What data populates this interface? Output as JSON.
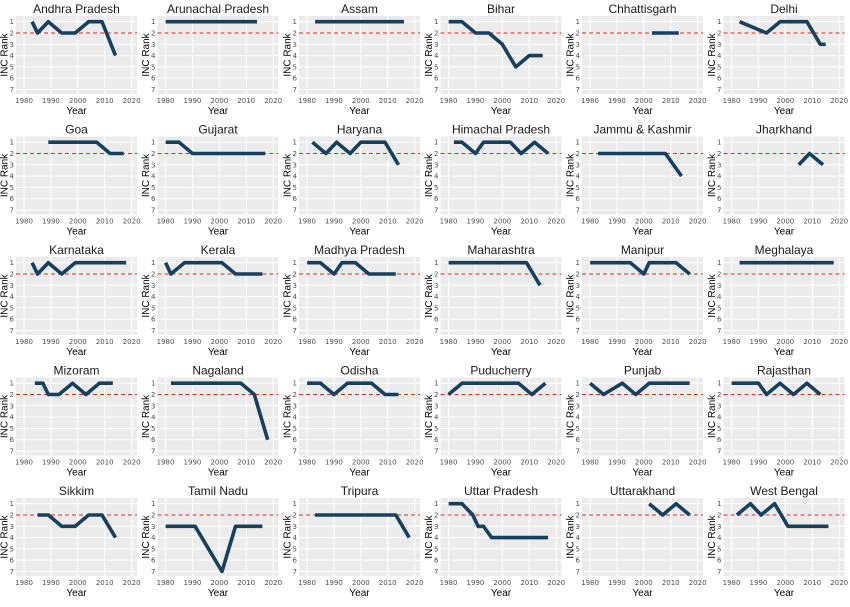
{
  "chart_data": {
    "type": "line",
    "xlabel": "Year",
    "ylabel": "INC Rank",
    "xlim": [
      1977,
      2022
    ],
    "ylim": [
      0.5,
      7.4
    ],
    "x_ticks": [
      1980,
      1990,
      2000,
      2010,
      2020
    ],
    "y_ticks": [
      1,
      2,
      3,
      4,
      5,
      6,
      7
    ],
    "reference_line": 2,
    "grid": true,
    "colors": {
      "series": "#17405f",
      "reference": "#e4281e",
      "panel": "#ebebeb",
      "grid": "#ffffff"
    },
    "panels": [
      {
        "title": "Andhra Pradesh",
        "x": [
          1983,
          1985,
          1989,
          1994,
          1999,
          2004,
          2009,
          2014
        ],
        "y": [
          1,
          2,
          1,
          2,
          2,
          1,
          1,
          4
        ]
      },
      {
        "title": "Arunachal Pradesh",
        "x": [
          1980,
          1984,
          1990,
          1995,
          1999,
          2004,
          2009,
          2014
        ],
        "y": [
          1,
          1,
          1,
          1,
          1,
          1,
          1,
          1
        ]
      },
      {
        "title": "Assam",
        "x": [
          1983,
          1985,
          1991,
          1996,
          2001,
          2006,
          2011,
          2016
        ],
        "y": [
          1,
          1,
          1,
          1,
          1,
          1,
          1,
          1
        ]
      },
      {
        "title": "Bihar",
        "x": [
          1980,
          1985,
          1990,
          1995,
          2000,
          2005,
          2010,
          2015
        ],
        "y": [
          1,
          1,
          2,
          2,
          3,
          5,
          4,
          4
        ]
      },
      {
        "title": "Chhattisgarh",
        "x": [
          2003,
          2008,
          2013
        ],
        "y": [
          2,
          2,
          2
        ]
      },
      {
        "title": "Delhi",
        "x": [
          1983,
          1993,
          1998,
          2003,
          2008,
          2013,
          2015
        ],
        "y": [
          1,
          2,
          1,
          1,
          1,
          3,
          3
        ]
      },
      {
        "title": "Goa",
        "x": [
          1989,
          1994,
          1999,
          2002,
          2007,
          2012,
          2017
        ],
        "y": [
          1,
          1,
          1,
          1,
          1,
          2,
          2
        ]
      },
      {
        "title": "Gujarat",
        "x": [
          1980,
          1985,
          1990,
          1995,
          1998,
          2002,
          2007,
          2012,
          2017
        ],
        "y": [
          1,
          1,
          2,
          2,
          2,
          2,
          2,
          2,
          2
        ]
      },
      {
        "title": "Haryana",
        "x": [
          1982,
          1987,
          1991,
          1996,
          2000,
          2005,
          2009,
          2014
        ],
        "y": [
          1,
          2,
          1,
          2,
          1,
          1,
          1,
          3
        ]
      },
      {
        "title": "Himachal Pradesh",
        "x": [
          1982,
          1985,
          1990,
          1993,
          1998,
          2003,
          2007,
          2012,
          2017
        ],
        "y": [
          1,
          1,
          2,
          1,
          1,
          1,
          2,
          1,
          2
        ]
      },
      {
        "title": "Jammu & Kashmir",
        "x": [
          1983,
          1987,
          1996,
          2002,
          2008,
          2014
        ],
        "y": [
          2,
          2,
          2,
          2,
          2,
          4
        ]
      },
      {
        "title": "Jharkhand",
        "x": [
          2005,
          2009,
          2014
        ],
        "y": [
          3,
          2,
          3
        ]
      },
      {
        "title": "Karnataka",
        "x": [
          1983,
          1985,
          1989,
          1994,
          1999,
          2004,
          2008,
          2013,
          2018
        ],
        "y": [
          1,
          2,
          1,
          2,
          1,
          1,
          1,
          1,
          1
        ]
      },
      {
        "title": "Kerala",
        "x": [
          1980,
          1982,
          1987,
          1991,
          1996,
          2001,
          2006,
          2011,
          2016
        ],
        "y": [
          1,
          2,
          1,
          1,
          1,
          1,
          2,
          2,
          2
        ]
      },
      {
        "title": "Madhya Pradesh",
        "x": [
          1980,
          1985,
          1990,
          1993,
          1998,
          2003,
          2008,
          2013
        ],
        "y": [
          1,
          1,
          2,
          1,
          1,
          2,
          2,
          2
        ]
      },
      {
        "title": "Maharashtra",
        "x": [
          1980,
          1985,
          1990,
          1995,
          1999,
          2004,
          2009,
          2014
        ],
        "y": [
          1,
          1,
          1,
          1,
          1,
          1,
          1,
          3
        ]
      },
      {
        "title": "Manipur",
        "x": [
          1980,
          1984,
          1990,
          1995,
          2000,
          2002,
          2007,
          2012,
          2017
        ],
        "y": [
          1,
          1,
          1,
          1,
          2,
          1,
          1,
          1,
          2
        ]
      },
      {
        "title": "Meghalaya",
        "x": [
          1983,
          1988,
          1993,
          1998,
          2003,
          2008,
          2013,
          2018
        ],
        "y": [
          1,
          1,
          1,
          1,
          1,
          1,
          1,
          1
        ]
      },
      {
        "title": "Mizoram",
        "x": [
          1984,
          1987,
          1989,
          1993,
          1998,
          2003,
          2008,
          2013
        ],
        "y": [
          1,
          1,
          2,
          2,
          1,
          2,
          1,
          1
        ]
      },
      {
        "title": "Nagaland",
        "x": [
          1982,
          1987,
          1989,
          1993,
          1998,
          2003,
          2008,
          2013,
          2018
        ],
        "y": [
          1,
          1,
          1,
          1,
          1,
          1,
          1,
          2,
          6
        ]
      },
      {
        "title": "Odisha",
        "x": [
          1980,
          1985,
          1990,
          1995,
          2000,
          2004,
          2009,
          2014
        ],
        "y": [
          1,
          1,
          2,
          1,
          1,
          1,
          2,
          2
        ]
      },
      {
        "title": "Puducherry",
        "x": [
          1980,
          1985,
          1990,
          1991,
          1996,
          2001,
          2006,
          2011,
          2016
        ],
        "y": [
          2,
          1,
          1,
          1,
          1,
          1,
          1,
          2,
          1
        ]
      },
      {
        "title": "Punjab",
        "x": [
          1980,
          1985,
          1992,
          1997,
          2002,
          2007,
          2012,
          2017
        ],
        "y": [
          1,
          2,
          1,
          2,
          1,
          1,
          1,
          1
        ]
      },
      {
        "title": "Rajasthan",
        "x": [
          1980,
          1985,
          1990,
          1993,
          1998,
          2003,
          2008,
          2013
        ],
        "y": [
          1,
          1,
          1,
          2,
          1,
          2,
          1,
          2
        ]
      },
      {
        "title": "Sikkim",
        "x": [
          1985,
          1989,
          1994,
          1999,
          2004,
          2009,
          2014
        ],
        "y": [
          2,
          2,
          3,
          3,
          2,
          2,
          4
        ]
      },
      {
        "title": "Tamil Nadu",
        "x": [
          1980,
          1984,
          1989,
          1991,
          1996,
          2001,
          2006,
          2011,
          2016
        ],
        "y": [
          3,
          3,
          3,
          3,
          5,
          7,
          3,
          3,
          3
        ]
      },
      {
        "title": "Tripura",
        "x": [
          1983,
          1988,
          1993,
          1998,
          2003,
          2008,
          2013,
          2018
        ],
        "y": [
          2,
          2,
          2,
          2,
          2,
          2,
          2,
          4
        ]
      },
      {
        "title": "Uttar Pradesh",
        "x": [
          1980,
          1985,
          1989,
          1991,
          1993,
          1996,
          2002,
          2007,
          2012,
          2017
        ],
        "y": [
          1,
          1,
          2,
          3,
          3,
          4,
          4,
          4,
          4,
          4
        ]
      },
      {
        "title": "Uttarakhand",
        "x": [
          2002,
          2007,
          2012,
          2017
        ],
        "y": [
          1,
          2,
          1,
          2
        ]
      },
      {
        "title": "West Bengal",
        "x": [
          1982,
          1987,
          1991,
          1996,
          2001,
          2006,
          2011,
          2016
        ],
        "y": [
          2,
          1,
          2,
          1,
          3,
          3,
          3,
          3
        ]
      }
    ]
  }
}
